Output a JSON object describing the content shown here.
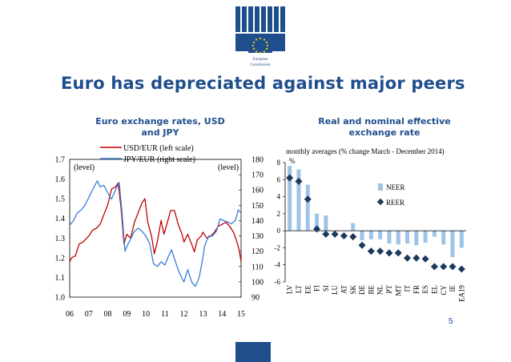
{
  "logo": {
    "caption_line1": "European",
    "caption_line2": "Commission"
  },
  "slide_title": "Euro has depreciated against major peers",
  "page_number": "5",
  "colors": {
    "brand_blue": "#1f4e8c",
    "usd_line": "#c00000",
    "jpy_line": "#3b7dd8",
    "neer_bar": "#9dc3e6",
    "reer_marker": "#1b3a5c"
  },
  "chart_data": [
    {
      "type": "line",
      "title_line1": "Euro exchange rates, USD",
      "title_line2": "and JPY",
      "left_axis_label": "(level)",
      "right_axis_label": "(level)",
      "x_ticks": [
        "06",
        "07",
        "08",
        "09",
        "10",
        "11",
        "12",
        "13",
        "14",
        "15"
      ],
      "x_range": [
        2006,
        2015
      ],
      "ylim_left": [
        1.0,
        1.7
      ],
      "y_ticks_left": [
        "1.0",
        "1.1",
        "1.2",
        "1.3",
        "1.4",
        "1.5",
        "1.6",
        "1.7"
      ],
      "ylim_right": [
        90,
        180
      ],
      "y_ticks_right": [
        "90",
        "100",
        "110",
        "120",
        "130",
        "140",
        "150",
        "160",
        "170",
        "180"
      ],
      "series": [
        {
          "name": "USD/EUR (left scale)",
          "axis": "left",
          "points": [
            [
              2006.0,
              1.18
            ],
            [
              2006.1,
              1.2
            ],
            [
              2006.3,
              1.21
            ],
            [
              2006.5,
              1.27
            ],
            [
              2006.7,
              1.28
            ],
            [
              2006.9,
              1.3
            ],
            [
              2007.0,
              1.31
            ],
            [
              2007.2,
              1.34
            ],
            [
              2007.4,
              1.35
            ],
            [
              2007.6,
              1.37
            ],
            [
              2007.8,
              1.42
            ],
            [
              2008.0,
              1.47
            ],
            [
              2008.2,
              1.55
            ],
            [
              2008.4,
              1.56
            ],
            [
              2008.55,
              1.58
            ],
            [
              2008.7,
              1.45
            ],
            [
              2008.85,
              1.27
            ],
            [
              2009.0,
              1.32
            ],
            [
              2009.2,
              1.3
            ],
            [
              2009.4,
              1.38
            ],
            [
              2009.6,
              1.43
            ],
            [
              2009.8,
              1.48
            ],
            [
              2009.95,
              1.5
            ],
            [
              2010.1,
              1.38
            ],
            [
              2010.3,
              1.31
            ],
            [
              2010.45,
              1.22
            ],
            [
              2010.6,
              1.28
            ],
            [
              2010.8,
              1.39
            ],
            [
              2010.95,
              1.32
            ],
            [
              2011.1,
              1.37
            ],
            [
              2011.3,
              1.44
            ],
            [
              2011.5,
              1.44
            ],
            [
              2011.7,
              1.37
            ],
            [
              2011.9,
              1.32
            ],
            [
              2012.0,
              1.28
            ],
            [
              2012.2,
              1.32
            ],
            [
              2012.4,
              1.27
            ],
            [
              2012.55,
              1.23
            ],
            [
              2012.7,
              1.29
            ],
            [
              2012.9,
              1.31
            ],
            [
              2013.0,
              1.33
            ],
            [
              2013.2,
              1.3
            ],
            [
              2013.4,
              1.31
            ],
            [
              2013.6,
              1.33
            ],
            [
              2013.8,
              1.36
            ],
            [
              2014.0,
              1.37
            ],
            [
              2014.2,
              1.38
            ],
            [
              2014.4,
              1.36
            ],
            [
              2014.6,
              1.33
            ],
            [
              2014.75,
              1.29
            ],
            [
              2014.9,
              1.24
            ],
            [
              2015.0,
              1.18
            ]
          ]
        },
        {
          "name": "JPY/EUR (right scale)",
          "axis": "right",
          "points": [
            [
              2006.0,
              137
            ],
            [
              2006.2,
              140
            ],
            [
              2006.4,
              145
            ],
            [
              2006.6,
              147
            ],
            [
              2006.8,
              150
            ],
            [
              2007.0,
              155
            ],
            [
              2007.2,
              160
            ],
            [
              2007.45,
              166
            ],
            [
              2007.6,
              162
            ],
            [
              2007.8,
              163
            ],
            [
              2008.0,
              158
            ],
            [
              2008.2,
              154
            ],
            [
              2008.4,
              160
            ],
            [
              2008.6,
              165
            ],
            [
              2008.75,
              145
            ],
            [
              2008.9,
              120
            ],
            [
              2009.0,
              123
            ],
            [
              2009.2,
              128
            ],
            [
              2009.4,
              133
            ],
            [
              2009.6,
              135
            ],
            [
              2009.8,
              133
            ],
            [
              2010.0,
              130
            ],
            [
              2010.2,
              125
            ],
            [
              2010.4,
              112
            ],
            [
              2010.6,
              110
            ],
            [
              2010.8,
              113
            ],
            [
              2011.0,
              111
            ],
            [
              2011.2,
              117
            ],
            [
              2011.35,
              121
            ],
            [
              2011.5,
              115
            ],
            [
              2011.7,
              108
            ],
            [
              2011.9,
              102
            ],
            [
              2012.0,
              100
            ],
            [
              2012.2,
              108
            ],
            [
              2012.4,
              100
            ],
            [
              2012.6,
              97
            ],
            [
              2012.8,
              103
            ],
            [
              2012.95,
              113
            ],
            [
              2013.1,
              124
            ],
            [
              2013.3,
              130
            ],
            [
              2013.5,
              130
            ],
            [
              2013.7,
              133
            ],
            [
              2013.9,
              141
            ],
            [
              2014.1,
              140
            ],
            [
              2014.3,
              139
            ],
            [
              2014.5,
              138
            ],
            [
              2014.7,
              140
            ],
            [
              2014.85,
              147
            ],
            [
              2015.0,
              145
            ]
          ]
        }
      ]
    },
    {
      "type": "bar",
      "title_line1": "Real and nominal effective",
      "title_line2": "exchange rate",
      "subtitle": "monthly averages (% change March - December 2014)",
      "ylabel": "%",
      "ylim": [
        -6,
        8
      ],
      "y_ticks": [
        "8",
        "6",
        "4",
        "2",
        "0",
        "-2",
        "-4",
        "-6"
      ],
      "categories": [
        "LV",
        "LT",
        "EE",
        "FI",
        "SI",
        "LU",
        "AT",
        "SK",
        "DE",
        "BE",
        "NL",
        "PT",
        "MT",
        "IT",
        "FR",
        "ES",
        "EL",
        "CY",
        "IE",
        "EA19"
      ],
      "series": [
        {
          "name": "NEER",
          "type": "bar",
          "values": [
            7.6,
            7.2,
            5.4,
            2.0,
            1.8,
            0.0,
            0.0,
            0.9,
            -1.1,
            -1.0,
            -1.0,
            -1.5,
            -1.6,
            -1.5,
            -1.7,
            -1.4,
            -0.7,
            -1.6,
            -3.1,
            -2.0
          ]
        },
        {
          "name": "REER",
          "type": "marker",
          "values": [
            6.2,
            5.8,
            3.7,
            0.2,
            -0.4,
            -0.4,
            -0.6,
            -0.7,
            -1.7,
            -2.4,
            -2.4,
            -2.6,
            -2.6,
            -3.2,
            -3.2,
            -3.3,
            -4.2,
            -4.2,
            -4.2,
            -4.5
          ]
        }
      ]
    }
  ]
}
